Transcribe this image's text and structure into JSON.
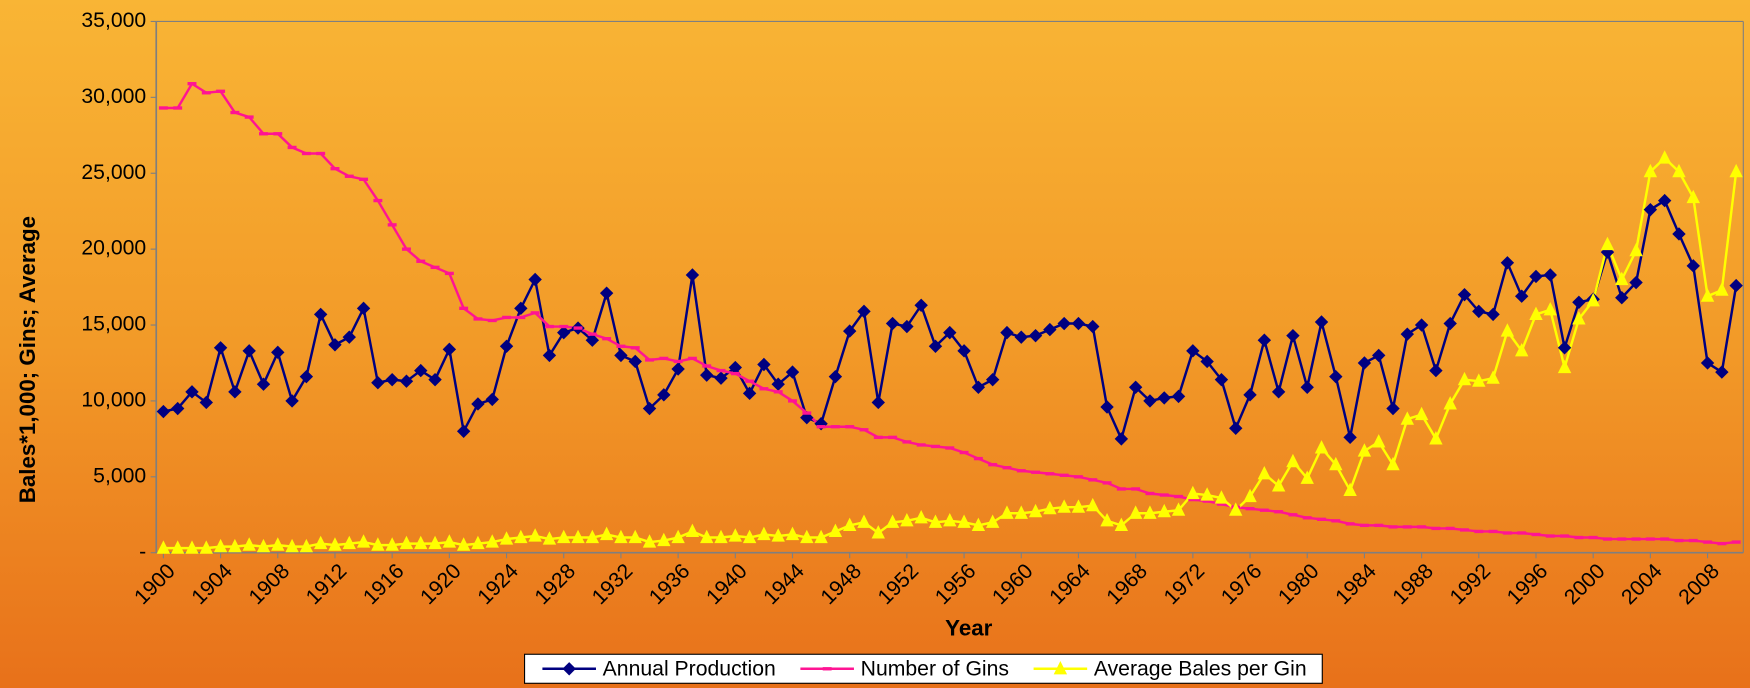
{
  "chart_data": {
    "type": "line",
    "x_label": "Year",
    "y_label": "Bales*1,000; Gins; Average",
    "categories": [
      "1900",
      null,
      null,
      null,
      "1904",
      null,
      null,
      null,
      "1908",
      null,
      null,
      null,
      "1912",
      null,
      null,
      null,
      "1916",
      null,
      null,
      null,
      "1920",
      null,
      null,
      null,
      "1924",
      null,
      null,
      null,
      "1928",
      null,
      null,
      null,
      "1932",
      null,
      null,
      null,
      "1936",
      null,
      null,
      null,
      "1940",
      null,
      null,
      null,
      "1944",
      null,
      null,
      null,
      "1948",
      null,
      null,
      null,
      "1952",
      null,
      null,
      null,
      "1956",
      null,
      null,
      null,
      "1960",
      null,
      null,
      null,
      "1964",
      null,
      null,
      null,
      "1968",
      null,
      null,
      null,
      "1972",
      null,
      null,
      null,
      "1976",
      null,
      null,
      null,
      "1980",
      null,
      null,
      null,
      "1984",
      null,
      null,
      null,
      "1988",
      null,
      null,
      null,
      "1992",
      null,
      null,
      null,
      "1996",
      null,
      null,
      null,
      "2000",
      null,
      null,
      null,
      "2004",
      null,
      null,
      null,
      "2008",
      null,
      null
    ],
    "series": [
      {
        "name": "Annual Production",
        "color": "#000080",
        "marker": "diamond",
        "values": [
          9300,
          9500,
          10600,
          9900,
          13500,
          10600,
          13300,
          11100,
          13200,
          10000,
          11600,
          15700,
          13700,
          14200,
          16100,
          11200,
          11400,
          11300,
          12000,
          11400,
          13400,
          8000,
          9800,
          10100,
          13600,
          16100,
          18000,
          13000,
          14500,
          14800,
          14000,
          17100,
          13000,
          12600,
          9500,
          10400,
          12100,
          18300,
          11700,
          11500,
          12200,
          10500,
          12400,
          11100,
          11900,
          8900,
          8500,
          11600,
          14600,
          15900,
          9900,
          15100,
          14900,
          16300,
          13600,
          14500,
          13300,
          10900,
          11400,
          14500,
          14200,
          14300,
          14700,
          15100,
          15100,
          14900,
          9600,
          7500,
          10900,
          10000,
          10200,
          10300,
          13300,
          12600,
          11400,
          8200,
          10400,
          14000,
          10600,
          14300,
          10900,
          15200,
          11600,
          7600,
          12500,
          13000,
          9500,
          14400,
          15000,
          12000,
          15100,
          17000,
          15900,
          15700,
          19100,
          16900,
          18200,
          18300,
          13500,
          16500,
          16700,
          19800,
          16800,
          17800,
          22600,
          23200,
          21000,
          18900,
          12500,
          11900,
          17600
        ]
      },
      {
        "name": "Number of Gins",
        "color": "#ff1493",
        "marker": "dash",
        "values": [
          29300,
          29300,
          30900,
          30300,
          30400,
          29000,
          28700,
          27600,
          27600,
          26700,
          26300,
          26300,
          25300,
          24800,
          24600,
          23200,
          21600,
          20000,
          19200,
          18800,
          18400,
          16100,
          15400,
          15300,
          15500,
          15500,
          15800,
          14900,
          14900,
          14800,
          14400,
          14100,
          13600,
          13500,
          12700,
          12800,
          12600,
          12800,
          12300,
          12000,
          11800,
          11300,
          10800,
          10600,
          10000,
          9200,
          8300,
          8300,
          8300,
          8100,
          7600,
          7600,
          7300,
          7100,
          7000,
          6900,
          6600,
          6200,
          5800,
          5600,
          5400,
          5300,
          5200,
          5100,
          5000,
          4800,
          4600,
          4200,
          4200,
          3900,
          3800,
          3700,
          3500,
          3400,
          3200,
          3000,
          2900,
          2800,
          2700,
          2500,
          2300,
          2200,
          2100,
          1900,
          1800,
          1800,
          1700,
          1700,
          1700,
          1600,
          1600,
          1500,
          1400,
          1400,
          1300,
          1300,
          1200,
          1100,
          1100,
          1000,
          1000,
          900,
          900,
          900,
          900,
          900,
          800,
          800,
          700,
          600,
          700
        ]
      },
      {
        "name": "Average Bales per Gin",
        "color": "#ffff00",
        "marker": "triangle",
        "values": [
          300,
          300,
          300,
          300,
          400,
          400,
          500,
          400,
          500,
          400,
          400,
          600,
          500,
          600,
          700,
          500,
          500,
          600,
          600,
          600,
          700,
          500,
          600,
          700,
          900,
          1000,
          1100,
          900,
          1000,
          1000,
          1000,
          1200,
          1000,
          1000,
          700,
          800,
          1000,
          1400,
          1000,
          1000,
          1100,
          1000,
          1200,
          1100,
          1200,
          1000,
          1000,
          1400,
          1800,
          2000,
          1300,
          2000,
          2100,
          2300,
          2000,
          2100,
          2000,
          1800,
          2000,
          2600,
          2600,
          2700,
          2900,
          3000,
          3000,
          3100,
          2100,
          1800,
          2600,
          2600,
          2700,
          2800,
          3900,
          3800,
          3600,
          2800,
          3700,
          5200,
          4400,
          6000,
          4900,
          6900,
          5800,
          4100,
          6700,
          7300,
          5800,
          8800,
          9100,
          7500,
          9800,
          11400,
          11300,
          11500,
          14600,
          13300,
          15700,
          16000,
          12200,
          15400,
          16600,
          20300,
          18000,
          19900,
          25100,
          26000,
          25100,
          23400,
          16900,
          17300,
          25100
        ]
      }
    ],
    "ylim": [
      0,
      35000
    ],
    "yticks": [
      {
        "value": 0,
        "label": "-"
      },
      {
        "value": 5000,
        "label": "5,000"
      },
      {
        "value": 10000,
        "label": "10,000"
      },
      {
        "value": 15000,
        "label": "15,000"
      },
      {
        "value": 20000,
        "label": "20,000"
      },
      {
        "value": 25000,
        "label": "25,000"
      },
      {
        "value": 30000,
        "label": "30,000"
      },
      {
        "value": 35000,
        "label": "35,000"
      }
    ],
    "grid": false,
    "legend": "bottom"
  }
}
